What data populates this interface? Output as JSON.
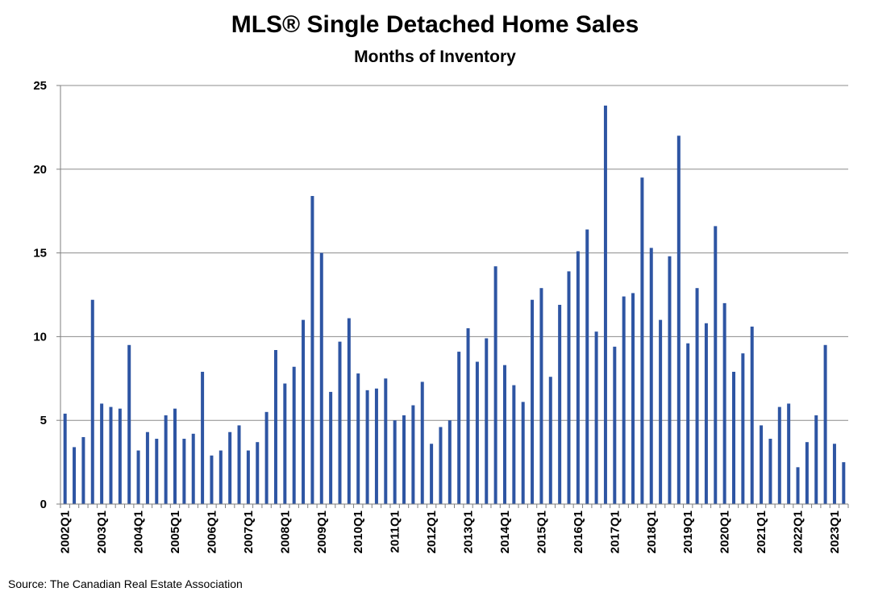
{
  "chart_data": {
    "type": "bar",
    "title": "MLS® Single Detached Home Sales",
    "subtitle": "Months of Inventory",
    "xlabel": "",
    "ylabel": "",
    "ylim": [
      0,
      25
    ],
    "yticks": [
      "0",
      "5",
      "10",
      "15",
      "20",
      "25"
    ],
    "grid": true,
    "bar_color": "#2E55A3",
    "categories": [
      "2002Q1",
      "2002Q2",
      "2002Q3",
      "2002Q4",
      "2003Q1",
      "2003Q2",
      "2003Q3",
      "2003Q4",
      "2004Q1",
      "2004Q2",
      "2004Q3",
      "2004Q4",
      "2005Q1",
      "2005Q2",
      "2005Q3",
      "2005Q4",
      "2006Q1",
      "2006Q2",
      "2006Q3",
      "2006Q4",
      "2007Q1",
      "2007Q2",
      "2007Q3",
      "2007Q4",
      "2008Q1",
      "2008Q2",
      "2008Q3",
      "2008Q4",
      "2009Q1",
      "2009Q2",
      "2009Q3",
      "2009Q4",
      "2010Q1",
      "2010Q2",
      "2010Q3",
      "2010Q4",
      "2011Q1",
      "2011Q2",
      "2011Q3",
      "2011Q4",
      "2012Q1",
      "2012Q2",
      "2012Q3",
      "2012Q4",
      "2013Q1",
      "2013Q2",
      "2013Q3",
      "2013Q4",
      "2014Q1",
      "2014Q2",
      "2014Q3",
      "2014Q4",
      "2015Q1",
      "2015Q2",
      "2015Q3",
      "2015Q4",
      "2016Q1",
      "2016Q2",
      "2016Q3",
      "2016Q4",
      "2017Q1",
      "2017Q2",
      "2017Q3",
      "2017Q4",
      "2018Q1",
      "2018Q2",
      "2018Q3",
      "2018Q4",
      "2019Q1",
      "2019Q2",
      "2019Q3",
      "2019Q4",
      "2020Q1",
      "2020Q2",
      "2020Q3",
      "2020Q4",
      "2021Q1",
      "2021Q2",
      "2021Q3",
      "2021Q4",
      "2022Q1",
      "2022Q2",
      "2022Q3",
      "2022Q4",
      "2023Q1",
      "2023Q2"
    ],
    "tick_labels": [
      "2002Q1",
      "2003Q1",
      "2004Q1",
      "2005Q1",
      "2006Q1",
      "2007Q1",
      "2008Q1",
      "2009Q1",
      "2010Q1",
      "2011Q1",
      "2012Q1",
      "2013Q1",
      "2014Q1",
      "2015Q1",
      "2016Q1",
      "2017Q1",
      "2018Q1",
      "2019Q1",
      "2020Q1",
      "2021Q1",
      "2022Q1",
      "2023Q1"
    ],
    "values": [
      5.4,
      3.4,
      4.0,
      12.2,
      6.0,
      5.8,
      5.7,
      9.5,
      3.2,
      4.3,
      3.9,
      5.3,
      5.7,
      3.9,
      4.2,
      7.9,
      2.9,
      3.2,
      4.3,
      4.7,
      3.2,
      3.7,
      5.5,
      9.2,
      7.2,
      8.2,
      11.0,
      18.4,
      15.0,
      6.7,
      9.7,
      11.1,
      7.8,
      6.8,
      6.9,
      7.5,
      5.0,
      5.3,
      5.9,
      7.3,
      3.6,
      4.6,
      5.0,
      9.1,
      10.5,
      8.5,
      9.9,
      14.2,
      8.3,
      7.1,
      6.1,
      12.2,
      12.9,
      7.6,
      11.9,
      13.9,
      15.1,
      16.4,
      10.3,
      23.8,
      9.4,
      12.4,
      12.6,
      19.5,
      15.3,
      11.0,
      14.8,
      22.0,
      9.6,
      12.9,
      10.8,
      16.6,
      12.0,
      7.9,
      9.0,
      10.6,
      4.7,
      3.9,
      5.8,
      6.0,
      2.2,
      3.7,
      5.3,
      9.5,
      3.6,
      2.5
    ]
  },
  "source": "Source: The Canadian Real Estate Association"
}
